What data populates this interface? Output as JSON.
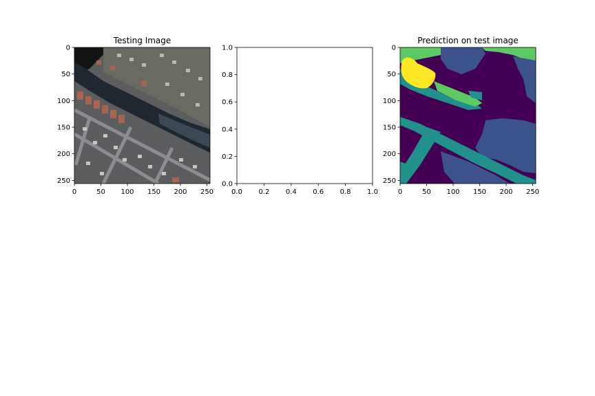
{
  "chart_data": [
    {
      "type": "image",
      "title": "Testing Image",
      "content": "satellite image of a residential area with a dark river channel",
      "x_ticks": [
        "0",
        "50",
        "100",
        "150",
        "200",
        "250"
      ],
      "y_ticks": [
        "0",
        "50",
        "100",
        "150",
        "200",
        "250"
      ],
      "xlim": [
        0,
        256
      ],
      "ylim": [
        256,
        0
      ],
      "colors": {
        "base": "#5b5d5e",
        "river": "#1f2730",
        "river_light": "#3d4856",
        "roof_red": "#a8644e",
        "roof_light": "#b9b8b2",
        "road": "#8b8d92",
        "dark_top": "#141414"
      }
    },
    {
      "type": "empty",
      "title": "",
      "x_ticks": [
        "0.0",
        "0.2",
        "0.4",
        "0.6",
        "0.8",
        "1.0"
      ],
      "y_ticks": [
        "0.0",
        "0.2",
        "0.4",
        "0.6",
        "0.8",
        "1.0"
      ],
      "xlim": [
        0,
        1
      ],
      "ylim": [
        0,
        1
      ]
    },
    {
      "type": "heatmap",
      "title": "Prediction on test image",
      "content": "segmentation mask with classes colored by viridis colormap",
      "x_ticks": [
        "0",
        "50",
        "100",
        "150",
        "200",
        "250"
      ],
      "y_ticks": [
        "0",
        "50",
        "100",
        "150",
        "200",
        "250"
      ],
      "xlim": [
        0,
        256
      ],
      "ylim": [
        256,
        0
      ],
      "colormap": "viridis",
      "colors": {
        "class_0": "#440154",
        "class_1": "#3b528b",
        "class_2": "#21918c",
        "class_3": "#5ec962",
        "class_4": "#fde725"
      }
    }
  ]
}
